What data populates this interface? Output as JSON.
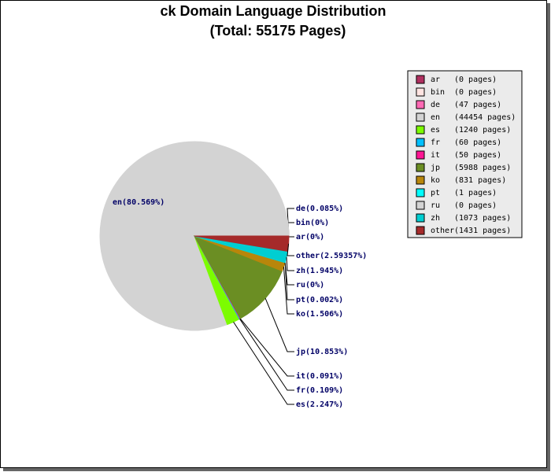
{
  "chart_data": {
    "type": "pie",
    "title": "ck Domain Language Distribution",
    "subtitle": "(Total: 55175 Pages)",
    "categories": [
      "ar",
      "bin",
      "de",
      "en",
      "es",
      "fr",
      "it",
      "jp",
      "ko",
      "pt",
      "ru",
      "zh",
      "other"
    ],
    "values": [
      0,
      0,
      47,
      44454,
      1240,
      60,
      50,
      5988,
      831,
      1,
      0,
      1073,
      1431
    ],
    "legend_labels": [
      "(0 pages)",
      "(0 pages)",
      "(47 pages)",
      "(44454 pages)",
      "(1240 pages)",
      "(60 pages)",
      "(50 pages)",
      "(5988 pages)",
      "(831 pages)",
      "(1 pages)",
      "(0 pages)",
      "(1073 pages)",
      "(1431 pages)"
    ],
    "value_labels": [
      "ar(0%)",
      "bin(0%)",
      "de(0.085%)",
      "en(80.569%)",
      "es(2.247%)",
      "fr(0.109%)",
      "it(0.091%)",
      "jp(10.853%)",
      "ko(1.506%)",
      "pt(0.002%)",
      "ru(0%)",
      "zh(1.945%)",
      "other(2.59357%)"
    ],
    "colors": [
      "#b03060",
      "#ffe4e1",
      "#ff69b4",
      "#d3d3d3",
      "#7cfc00",
      "#00bfff",
      "#ff1493",
      "#6b8e23",
      "#b8860b",
      "#00ffff",
      "#d3d3d3",
      "#00ced1",
      "#a52a2a"
    ],
    "legend": "top-right"
  }
}
